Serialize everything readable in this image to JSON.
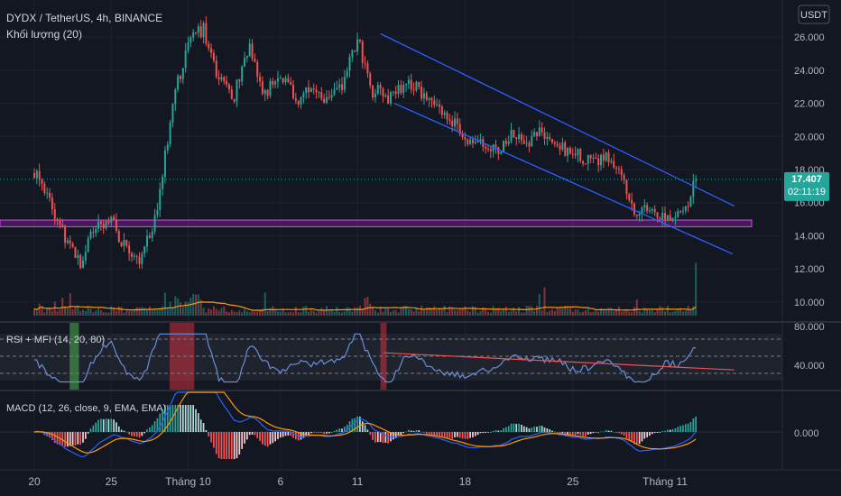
{
  "header": {
    "symbol_line": "DYDX / TetherUS, 4h, BINANCE",
    "volume_label": "Khối lượng (20)",
    "currency_button": "USDT"
  },
  "price_pane": {
    "price_ticks": [
      "26.000",
      "24.000",
      "22.000",
      "20.000",
      "18.000",
      "16.000",
      "14.000",
      "12.000",
      "10.000"
    ],
    "tick_values": [
      26,
      24,
      22,
      20,
      18,
      16,
      14,
      12,
      10
    ],
    "last_price": "17.407",
    "countdown": "02:11:19",
    "last_price_value": 17.407
  },
  "rsi_pane": {
    "label": "RSI + MFI (14, 20, 80)",
    "ticks": [
      "80.000",
      "40.000"
    ],
    "tick_values": [
      80,
      40
    ]
  },
  "macd_pane": {
    "label": "MACD (12, 26, close, 9, EMA, EMA)",
    "ticks": [
      "0.000"
    ]
  },
  "time_axis": {
    "labels": [
      "20",
      "25",
      "Tháng 10",
      "6",
      "11",
      "18",
      "25",
      "Tháng 11"
    ],
    "day_index": [
      0,
      5,
      10,
      16,
      21,
      28,
      35,
      41
    ]
  },
  "chart_data": {
    "type": "candlestick",
    "symbol": "DYDX/USDT",
    "interval": "4h",
    "exchange": "BINANCE",
    "price_range": [
      8.8,
      27.8
    ],
    "last_price": 17.407,
    "support_zone": [
      14.55,
      14.95
    ],
    "channel_upper": [
      [
        22.5,
        26.2
      ],
      [
        45.5,
        15.8
      ]
    ],
    "channel_lower": [
      [
        23.4,
        22.0
      ],
      [
        45.4,
        12.9
      ]
    ],
    "price_anchors": [
      [
        0,
        17.8
      ],
      [
        1,
        16.0
      ],
      [
        2,
        14.0
      ],
      [
        3,
        12.5
      ],
      [
        4,
        14.8
      ],
      [
        5,
        15.0
      ],
      [
        6,
        13.0
      ],
      [
        7,
        12.6
      ],
      [
        8,
        15.5
      ],
      [
        9,
        22.0
      ],
      [
        10,
        25.8
      ],
      [
        11,
        26.5
      ],
      [
        12,
        23.5
      ],
      [
        13,
        22.5
      ],
      [
        14,
        25.6
      ],
      [
        15,
        22.5
      ],
      [
        16,
        23.8
      ],
      [
        17,
        22.2
      ],
      [
        18,
        23.2
      ],
      [
        19,
        22.1
      ],
      [
        20,
        23.2
      ],
      [
        21,
        25.9
      ],
      [
        22,
        22.8
      ],
      [
        23,
        22.4
      ],
      [
        24,
        23.2
      ],
      [
        25,
        22.8
      ],
      [
        26,
        22.0
      ],
      [
        27,
        21.0
      ],
      [
        28,
        20.0
      ],
      [
        29,
        19.5
      ],
      [
        30,
        19.2
      ],
      [
        31,
        20.0
      ],
      [
        32,
        19.5
      ],
      [
        33,
        20.2
      ],
      [
        34,
        19.5
      ],
      [
        35,
        19.0
      ],
      [
        36,
        18.5
      ],
      [
        37,
        18.8
      ],
      [
        38,
        18.0
      ],
      [
        39,
        15.5
      ],
      [
        40,
        15.6
      ],
      [
        41,
        15.2
      ],
      [
        42,
        15.0
      ],
      [
        43,
        17.407
      ]
    ],
    "rsi_range": [
      20,
      100
    ],
    "rsi_levels": [
      80,
      60,
      40
    ],
    "rsi_trendline": [
      [
        22.7,
        64.0
      ],
      [
        45.5,
        44.0
      ]
    ],
    "rsi_overbought_zones": [
      [
        8.8,
        10.4
      ],
      [
        22.5,
        22.9
      ]
    ],
    "rsi_oversold_zones": [
      [
        2.3,
        2.9
      ]
    ],
    "macd_zero": 0
  }
}
